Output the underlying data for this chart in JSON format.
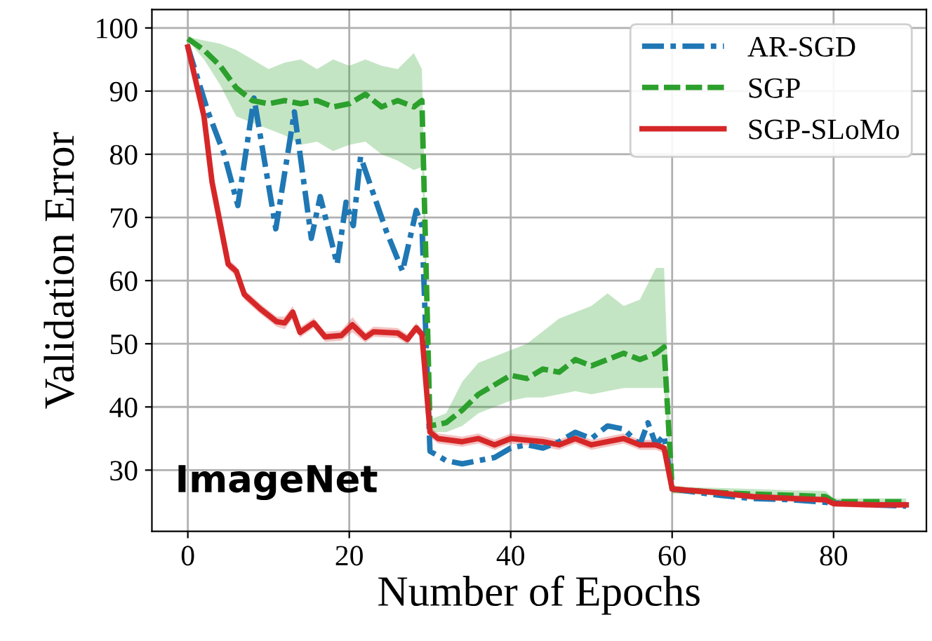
{
  "chart_data": {
    "type": "line",
    "xlabel": "Number of Epochs",
    "ylabel": "Validation Error",
    "xlim": [
      -4.45,
      91.5
    ],
    "ylim": [
      20.3,
      102.9
    ],
    "xticks": [
      0,
      20,
      40,
      60,
      80
    ],
    "yticks": [
      30,
      40,
      50,
      60,
      70,
      80,
      90,
      100
    ],
    "grid": true,
    "legend": "top right",
    "annotations": [
      "ImageNet"
    ],
    "series": [
      {
        "name": "AR-SGD",
        "color": "#1f77b4",
        "line_style": "dashdot",
        "x": [
          0,
          2.5,
          4.5,
          6.2,
          8.2,
          10.9,
          13.2,
          15.3,
          16.4,
          18.5,
          19.6,
          20.5,
          21.4,
          24.6,
          26.6,
          28.3,
          29,
          30,
          32,
          34,
          36,
          38,
          40,
          42,
          44,
          46,
          48,
          50,
          52,
          54,
          56,
          57,
          58,
          59,
          60,
          63,
          66,
          70,
          75,
          80,
          85,
          89
        ],
        "values": [
          97,
          86.7,
          80,
          71.9,
          88.9,
          68.2,
          86.7,
          66.7,
          73.3,
          62.6,
          72.4,
          68.7,
          79.6,
          67.8,
          61.5,
          71.1,
          68.7,
          33,
          31.5,
          31,
          31.5,
          32,
          33.5,
          34,
          33.5,
          34.5,
          36,
          35,
          37,
          36.5,
          34,
          37.5,
          34,
          35.5,
          27,
          26.5,
          26,
          25.5,
          25.3,
          24.8,
          24.5,
          24.3
        ]
      },
      {
        "name": "SGP",
        "color": "#2ca02c",
        "line_style": "dashed",
        "x": [
          0,
          2,
          4,
          6,
          8,
          10,
          12,
          14,
          16,
          18,
          20,
          22,
          24,
          26,
          28,
          29,
          30,
          32,
          34,
          36,
          38,
          40,
          42,
          44,
          46,
          48,
          50,
          52,
          54,
          56,
          58,
          59,
          60,
          62,
          65,
          70,
          75,
          79,
          80,
          85,
          89
        ],
        "values": [
          98.3,
          96.5,
          94,
          90.5,
          88.5,
          88,
          88.5,
          88,
          88.5,
          87.5,
          88,
          89.5,
          87.5,
          88.5,
          87.5,
          88.5,
          37,
          37.5,
          39.5,
          42,
          43.5,
          45,
          44.5,
          46,
          45.5,
          47.5,
          46.5,
          47.5,
          48.5,
          47.5,
          48.5,
          49.5,
          27,
          26.8,
          26.5,
          26.2,
          26,
          25.8,
          25,
          25,
          25
        ],
        "upper": [
          98.6,
          98,
          97.5,
          96.5,
          95,
          93.5,
          94.5,
          95,
          93.5,
          95,
          94,
          95,
          94,
          93.5,
          96,
          93.5,
          38,
          39,
          44,
          47,
          48,
          49,
          50,
          52,
          54,
          55,
          56,
          58,
          56,
          57,
          62,
          62,
          27.5,
          27.3,
          27.2,
          27,
          26.8,
          26.7,
          25.5,
          25.5,
          25.5
        ],
        "lower": [
          98,
          95,
          91,
          86,
          85,
          84,
          83,
          81.5,
          82,
          80.5,
          81.5,
          82,
          80,
          79,
          77.5,
          78,
          36,
          36,
          37,
          39,
          40,
          41,
          41.5,
          41.5,
          42,
          42.5,
          42,
          42.5,
          43,
          43,
          43,
          43,
          26.3,
          26.3,
          26,
          25.6,
          25.4,
          25.2,
          24.5,
          24.5,
          24.5
        ]
      },
      {
        "name": "SGP-SLoMo",
        "color": "#d62728",
        "line_style": "solid",
        "x": [
          0,
          2,
          3,
          5,
          6,
          7,
          9,
          11,
          12,
          13,
          13.9,
          15.6,
          17,
          19,
          20.4,
          22,
          23,
          26,
          27.2,
          28.3,
          29,
          30,
          31,
          34,
          36,
          38,
          40,
          44,
          46,
          48,
          50,
          52,
          54,
          56,
          58,
          59,
          60,
          62,
          65,
          70,
          75,
          79,
          80,
          85,
          89
        ],
        "values": [
          97,
          86,
          75.6,
          62.6,
          61.5,
          57.8,
          55.5,
          53.5,
          53.3,
          55,
          51.8,
          53.3,
          51.1,
          51.3,
          53,
          51,
          51.9,
          51.7,
          50.7,
          52.5,
          51.5,
          36,
          35,
          34.5,
          35,
          34,
          35,
          34.5,
          34,
          35,
          34,
          34.5,
          35,
          34,
          34,
          33.5,
          27,
          26.8,
          26.5,
          25.8,
          25.5,
          25.3,
          24.7,
          24.5,
          24.5
        ],
        "upper": [
          97.3,
          86.8,
          76.4,
          63.4,
          62.3,
          58.6,
          56.3,
          54.3,
          54.3,
          56,
          52.6,
          54.1,
          51.9,
          52.1,
          54.2,
          51.8,
          52.7,
          52.5,
          51.5,
          53.3,
          52.3,
          36.8,
          35.8,
          35.3,
          35.8,
          34.8,
          35.8,
          35.3,
          34.8,
          35.8,
          34.8,
          35.3,
          35.8,
          34.8,
          34.8,
          34.3,
          27.6,
          27.3,
          27,
          26.3,
          26,
          25.8,
          25.2,
          25,
          25
        ],
        "lower": [
          96.7,
          85.2,
          74.8,
          61.8,
          60.7,
          57,
          54.7,
          52.7,
          52.3,
          54,
          51,
          52.5,
          50.3,
          50.5,
          51.8,
          50.2,
          51.1,
          50.9,
          49.9,
          51.7,
          50.7,
          35.2,
          34.2,
          33.7,
          34.2,
          33.2,
          34.2,
          33.7,
          33.2,
          34.2,
          33.2,
          33.7,
          34.2,
          33.2,
          33.2,
          32.7,
          26.4,
          26.3,
          26,
          25.3,
          25,
          24.8,
          24.2,
          24,
          24
        ]
      }
    ]
  }
}
